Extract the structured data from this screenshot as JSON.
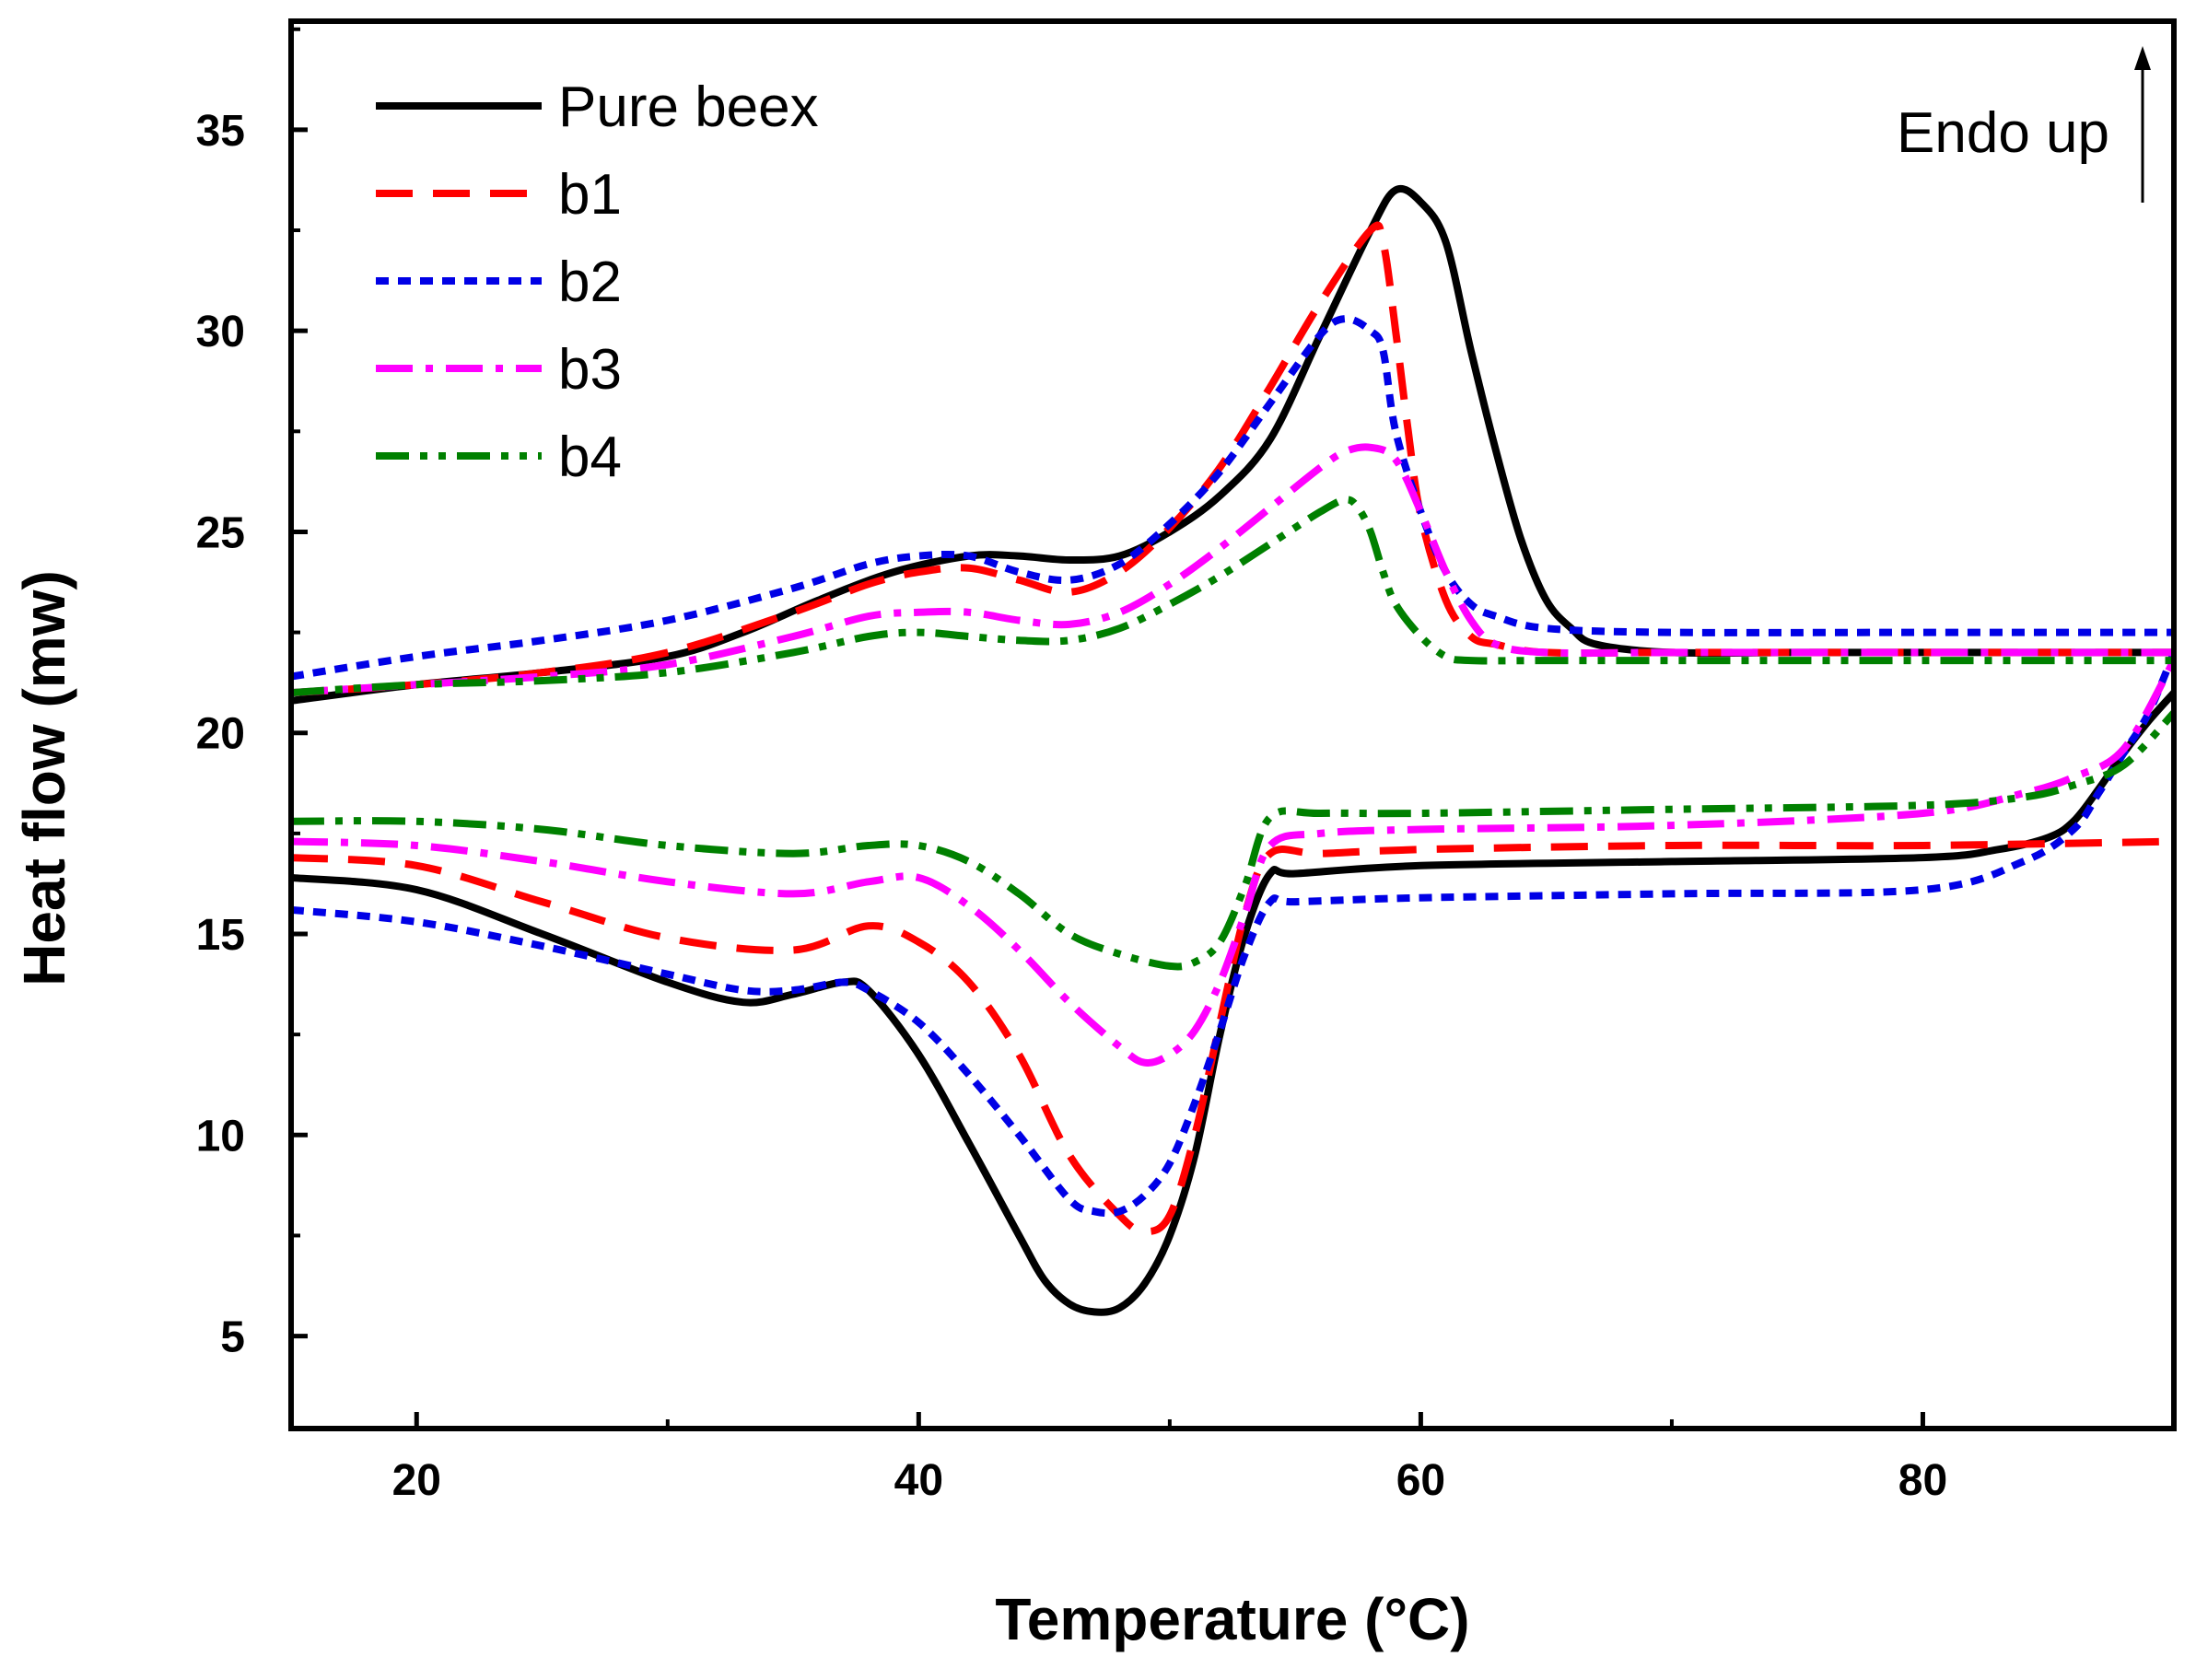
{
  "chart_data": {
    "type": "line",
    "title": "",
    "xlabel": "Temperature (°C)",
    "ylabel": "Heat flow (mw)",
    "xlim": [
      15,
      90
    ],
    "ylim": [
      2.7,
      37.7
    ],
    "x_ticks": [
      20,
      40,
      60,
      80
    ],
    "y_ticks": [
      5,
      10,
      15,
      20,
      25,
      30,
      35
    ],
    "annotation": "Endo up",
    "legend_position": "top-left",
    "series": [
      {
        "name": "Pure beex",
        "color": "#000000",
        "dash": "solid",
        "heating": {
          "x": [
            15,
            20,
            25,
            30,
            33,
            36,
            39,
            42,
            44,
            46,
            48,
            50,
            52,
            54,
            56,
            58,
            59,
            60,
            61,
            62,
            63,
            64,
            65,
            66,
            67,
            70,
            75,
            80,
            85,
            90
          ],
          "y": [
            20.8,
            21.2,
            21.5,
            21.9,
            22.5,
            23.3,
            24.0,
            24.4,
            24.4,
            24.3,
            24.4,
            25.0,
            25.9,
            27.3,
            29.9,
            32.5,
            33.5,
            33.2,
            32.2,
            29.5,
            27.0,
            24.8,
            23.3,
            22.6,
            22.2,
            22.0,
            22.0,
            22.0,
            22.0,
            22.0
          ]
        },
        "cooling": {
          "x": [
            15,
            20,
            25,
            30,
            33,
            35,
            37,
            38,
            40,
            42,
            44,
            45,
            46,
            47,
            48,
            49,
            50,
            51,
            52,
            53,
            54,
            55,
            60,
            70,
            80,
            83,
            85,
            86,
            87,
            88,
            89,
            90
          ],
          "y": [
            16.4,
            16.1,
            15.0,
            13.8,
            13.3,
            13.5,
            13.8,
            13.6,
            12.0,
            9.8,
            7.5,
            6.4,
            5.8,
            5.6,
            5.7,
            6.3,
            7.5,
            9.5,
            12.5,
            15.0,
            16.5,
            16.5,
            16.7,
            16.8,
            16.9,
            17.1,
            17.4,
            17.8,
            18.6,
            19.5,
            20.3,
            21.0
          ]
        }
      },
      {
        "name": "b1",
        "color": "#ff0000",
        "dash": "long-dash",
        "heating": {
          "x": [
            15,
            20,
            25,
            30,
            35,
            38,
            40,
            42,
            44,
            46,
            48,
            50,
            52,
            54,
            56,
            58,
            58.5,
            59,
            59.5,
            60,
            61,
            62,
            63,
            65,
            70,
            80,
            90
          ],
          "y": [
            21.0,
            21.2,
            21.5,
            22.0,
            23.0,
            23.7,
            24.0,
            24.1,
            23.8,
            23.5,
            24.0,
            25.1,
            26.6,
            28.6,
            30.7,
            32.5,
            32.2,
            30.0,
            27.5,
            25.4,
            23.3,
            22.4,
            22.2,
            22.0,
            22.0,
            22.0,
            22.0
          ]
        },
        "cooling": {
          "x": [
            15,
            20,
            25,
            30,
            35,
            38,
            40,
            42,
            44,
            46,
            48,
            49,
            50,
            51,
            52,
            53,
            54,
            56,
            60,
            70,
            80,
            90
          ],
          "y": [
            16.9,
            16.7,
            15.8,
            14.9,
            14.6,
            15.2,
            14.8,
            13.8,
            12.0,
            9.5,
            8.0,
            7.6,
            8.0,
            10.0,
            12.8,
            15.5,
            17.0,
            17.0,
            17.1,
            17.2,
            17.2,
            17.3
          ]
        }
      },
      {
        "name": "b2",
        "color": "#0000e6",
        "dash": "short-dash",
        "heating": {
          "x": [
            15,
            20,
            25,
            30,
            35,
            38,
            40,
            42,
            44,
            46,
            48,
            50,
            52,
            54,
            56,
            57,
            58,
            58.5,
            59,
            60,
            61,
            62,
            63,
            65,
            70,
            80,
            90
          ],
          "y": [
            21.4,
            21.9,
            22.3,
            22.8,
            23.6,
            24.2,
            24.4,
            24.4,
            24.0,
            23.8,
            24.2,
            25.2,
            26.5,
            28.2,
            29.9,
            30.3,
            30.0,
            29.5,
            27.5,
            25.5,
            24.0,
            23.2,
            22.9,
            22.6,
            22.5,
            22.5,
            22.5
          ]
        },
        "cooling": {
          "x": [
            15,
            20,
            25,
            30,
            33,
            35,
            37,
            38,
            40,
            42,
            44,
            46,
            47,
            48,
            49,
            50,
            51,
            52,
            53,
            54,
            55,
            60,
            70,
            80,
            84,
            86,
            87,
            88,
            89,
            90
          ],
          "y": [
            15.6,
            15.3,
            14.7,
            14.0,
            13.6,
            13.6,
            13.8,
            13.6,
            12.8,
            11.5,
            10.0,
            8.4,
            8.1,
            8.1,
            8.5,
            9.3,
            10.8,
            12.6,
            14.5,
            15.8,
            15.8,
            15.9,
            16.0,
            16.1,
            16.8,
            17.6,
            18.5,
            19.5,
            20.5,
            22.0
          ]
        }
      },
      {
        "name": "b3",
        "color": "#ff00ff",
        "dash": "dash-dot",
        "heating": {
          "x": [
            15,
            20,
            25,
            30,
            35,
            38,
            40,
            42,
            44,
            46,
            48,
            50,
            52,
            54,
            56,
            57,
            58,
            59,
            60,
            61,
            62,
            63,
            65,
            70,
            80,
            90
          ],
          "y": [
            21.0,
            21.2,
            21.4,
            21.7,
            22.4,
            22.9,
            23.0,
            23.0,
            22.8,
            22.7,
            23.0,
            23.7,
            24.6,
            25.6,
            26.6,
            27.0,
            27.1,
            26.8,
            25.5,
            24.0,
            22.8,
            22.2,
            22.0,
            22.0,
            22.0,
            22.0
          ]
        },
        "cooling": {
          "x": [
            15,
            20,
            25,
            30,
            35,
            38,
            40,
            42,
            44,
            46,
            48,
            49,
            50,
            51,
            52,
            53,
            54,
            56,
            60,
            70,
            80,
            84,
            86,
            88,
            90
          ],
          "y": [
            17.3,
            17.2,
            16.8,
            16.3,
            16.0,
            16.3,
            16.4,
            15.7,
            14.6,
            13.3,
            12.2,
            11.8,
            12.0,
            12.6,
            13.8,
            15.5,
            17.2,
            17.5,
            17.6,
            17.7,
            18.0,
            18.5,
            18.9,
            19.6,
            21.8
          ]
        }
      },
      {
        "name": "b4",
        "color": "#008000",
        "dash": "dash-dot-dot",
        "heating": {
          "x": [
            15,
            20,
            25,
            30,
            35,
            38,
            40,
            42,
            44,
            46,
            48,
            50,
            52,
            54,
            56,
            57,
            57.5,
            58,
            58.5,
            59,
            60,
            61,
            62,
            65,
            70,
            80,
            90
          ],
          "y": [
            21.0,
            21.2,
            21.3,
            21.5,
            22.0,
            22.4,
            22.5,
            22.4,
            22.3,
            22.3,
            22.6,
            23.2,
            23.9,
            24.7,
            25.5,
            25.8,
            25.6,
            25.0,
            24.0,
            23.2,
            22.4,
            21.9,
            21.8,
            21.8,
            21.8,
            21.8,
            21.8
          ]
        },
        "cooling": {
          "x": [
            15,
            20,
            25,
            30,
            35,
            38,
            40,
            42,
            44,
            46,
            48,
            50,
            51,
            52,
            53,
            54,
            56,
            60,
            70,
            80,
            84,
            86,
            88,
            90
          ],
          "y": [
            17.8,
            17.8,
            17.6,
            17.2,
            17.0,
            17.2,
            17.2,
            16.8,
            16.0,
            15.0,
            14.5,
            14.2,
            14.3,
            14.8,
            16.2,
            17.9,
            18.0,
            18.0,
            18.1,
            18.2,
            18.4,
            18.7,
            19.2,
            20.5
          ]
        }
      }
    ]
  }
}
